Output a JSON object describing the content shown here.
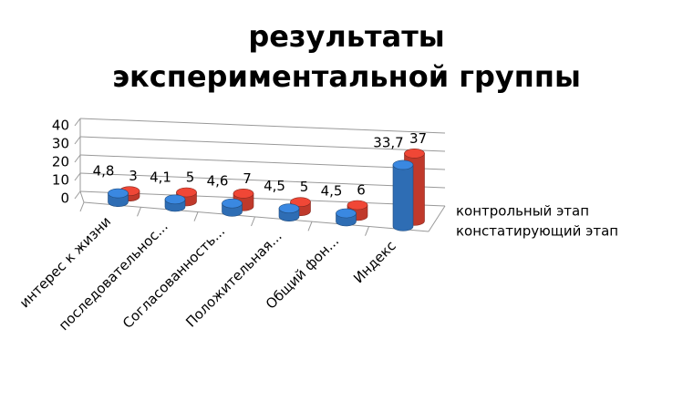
{
  "chart_data": {
    "type": "bar3d",
    "title": "результаты экспериментальной группы",
    "categories": [
      "интерес к жизни",
      "последовательнос...",
      "Согласованность...",
      "Положительная...",
      "Общий фон...",
      "Индекс"
    ],
    "series": [
      {
        "name": "контрольный этап",
        "color": "#c0392b",
        "values": [
          3,
          5,
          7,
          5,
          6,
          37
        ]
      },
      {
        "name": "констатирующий этап",
        "color": "#2e6db4",
        "values": [
          4.8,
          4.1,
          4.6,
          4.5,
          4.5,
          33.7
        ],
        "value_labels": [
          "4,8",
          "4,1",
          "4,6",
          "4,5",
          "4,5",
          "33,7"
        ]
      }
    ],
    "ylim": [
      0,
      40
    ],
    "yticks": [
      0,
      10,
      20,
      30,
      40
    ],
    "grid": true
  }
}
